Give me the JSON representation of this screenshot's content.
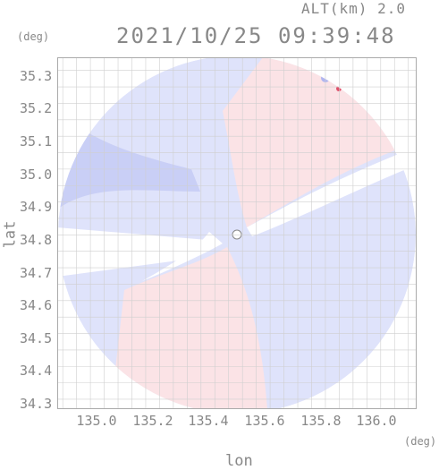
{
  "header": {
    "altitude": "ALT(km) 2.0",
    "datetime": "2021/10/25 09:39:48"
  },
  "axes": {
    "y_unit": "(deg)",
    "x_unit": "(deg)",
    "y_label": "lat",
    "x_label": "lon",
    "y_ticks": [
      "35.3",
      "35.2",
      "35.1",
      "35.0",
      "34.9",
      "34.8",
      "34.7",
      "34.6",
      "34.5",
      "34.4",
      "34.3"
    ],
    "x_ticks": [
      "135.0",
      "135.2",
      "135.4",
      "135.6",
      "135.8",
      "136.0"
    ]
  },
  "map_data": {
    "type": "doppler_radar_ppi",
    "lon_range": [
      134.88,
      136.18
    ],
    "lat_range": [
      34.27,
      35.34
    ],
    "grid": true,
    "radar_center": {
      "lon": 135.52,
      "lat": 34.805
    },
    "colors": {
      "toward": "#dfe3fb",
      "toward_strong": "#b0b6f0",
      "away": "#fbe3e6",
      "away_strong": "#e0506a",
      "no_data": "#ffffff",
      "frame": "#aaaaaa",
      "grid": "#cfcfcf"
    }
  }
}
